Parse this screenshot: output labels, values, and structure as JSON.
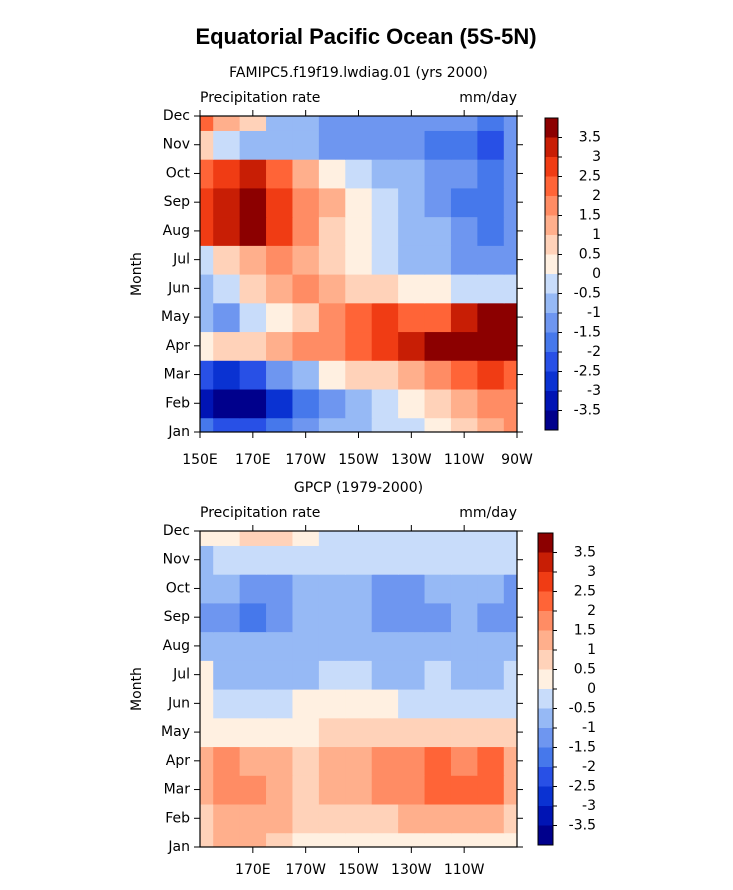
{
  "title": "Equatorial Pacific Ocean (5S-5N)",
  "chart_data": [
    {
      "type": "heatmap",
      "subtitle": "FAMIPC5.f19f19.lwdiag.01 (yrs 2000)",
      "left_label": "Precipitation rate",
      "units": "mm/day",
      "ylabel": "Month",
      "x": [
        150,
        160,
        170,
        180,
        190,
        200,
        210,
        220,
        230,
        240,
        250,
        260,
        270
      ],
      "categories": [
        "Jan",
        "Feb",
        "Mar",
        "Apr",
        "May",
        "Jun",
        "Jul",
        "Aug",
        "Sep",
        "Oct",
        "Nov",
        "Dec"
      ],
      "xlim": [
        150,
        270
      ],
      "xticks": [
        {
          "value": 150,
          "label": "150E"
        },
        {
          "value": 170,
          "label": "170E"
        },
        {
          "value": 190,
          "label": "170W"
        },
        {
          "value": 210,
          "label": "150W"
        },
        {
          "value": 230,
          "label": "130W"
        },
        {
          "value": 250,
          "label": "110W"
        },
        {
          "value": 270,
          "label": "90W"
        }
      ],
      "values": [
        [
          -2,
          -2.5,
          -2.5,
          -2,
          -1.5,
          -1,
          -0.7,
          -0.5,
          -0.2,
          0.3,
          0.8,
          1.2,
          1.5
        ],
        [
          -3.5,
          -4,
          -3.8,
          -3,
          -2,
          -1.2,
          -0.8,
          -0.3,
          0.2,
          0.7,
          1.2,
          1.5,
          1.8
        ],
        [
          -2.5,
          -2.8,
          -2.5,
          -1.5,
          -0.8,
          0,
          0.5,
          0.8,
          1.2,
          1.8,
          2.2,
          2.5,
          2.2
        ],
        [
          0.3,
          0.5,
          0.8,
          1.2,
          1.5,
          1.8,
          2.2,
          2.8,
          3.2,
          3.8,
          4,
          4,
          3.8
        ],
        [
          -1,
          -1.2,
          -0.5,
          0.2,
          0.8,
          1.5,
          2.2,
          2.5,
          2.2,
          2,
          3,
          3.8,
          3.5
        ],
        [
          -1,
          -0.5,
          0.8,
          1.2,
          1.8,
          1.2,
          0.8,
          0.5,
          0.3,
          0,
          -0.3,
          -0.5,
          -0.3
        ],
        [
          -0.3,
          0.5,
          1.2,
          1.5,
          1,
          0.5,
          0.2,
          -0.3,
          -0.6,
          -0.8,
          -1.2,
          -1.5,
          -1.2
        ],
        [
          2.5,
          3,
          3.6,
          2.5,
          1.5,
          0.7,
          0.2,
          -0.3,
          -0.7,
          -1,
          -1.5,
          -2,
          -1.5
        ],
        [
          2.8,
          3.2,
          3.8,
          2.8,
          1.8,
          1,
          0.3,
          -0.3,
          -0.8,
          -1.2,
          -1.8,
          -2,
          -1.5
        ],
        [
          2.2,
          2.5,
          3.2,
          2,
          1,
          0.2,
          -0.5,
          -0.8,
          -1,
          -1.3,
          -1.5,
          -2,
          -1.5
        ],
        [
          0.5,
          -0.5,
          -1,
          -1,
          -1,
          -1.2,
          -1.3,
          -1.5,
          -1.5,
          -1.8,
          -2,
          -2.2,
          -1.5
        ],
        [
          2,
          1.2,
          0.5,
          -0.8,
          -1,
          -1.2,
          -1.3,
          -1.5,
          -1.5,
          -1.2,
          -1.5,
          -1.8,
          -1.2
        ]
      ],
      "levels": [
        -3.5,
        -3,
        -2.5,
        -2,
        -1.5,
        -1,
        -0.5,
        0,
        0.5,
        1,
        1.5,
        2,
        2.5,
        3,
        3.5
      ],
      "colors": [
        "#00008c",
        "#0014b4",
        "#0a32d2",
        "#2850e6",
        "#4678eb",
        "#6e96f0",
        "#96b9f5",
        "#c8dcfa",
        "#fff0e1",
        "#ffd2b9",
        "#ffaf8c",
        "#ff8c64",
        "#ff6437",
        "#f03c14",
        "#c81e05",
        "#8c0000"
      ]
    },
    {
      "type": "heatmap",
      "subtitle": "GPCP (1979-2000)",
      "left_label": "Precipitation rate",
      "units": "mm/day",
      "ylabel": "Month",
      "x": [
        150,
        160,
        170,
        180,
        190,
        200,
        210,
        220,
        230,
        240,
        250,
        260,
        270
      ],
      "categories": [
        "Jan",
        "Feb",
        "Mar",
        "Apr",
        "May",
        "Jun",
        "Jul",
        "Aug",
        "Sep",
        "Oct",
        "Nov",
        "Dec"
      ],
      "xlim": [
        150,
        270
      ],
      "xticks": [
        {
          "value": 170,
          "label": "170E"
        },
        {
          "value": 190,
          "label": "170W"
        },
        {
          "value": 210,
          "label": "150W"
        },
        {
          "value": 230,
          "label": "130W"
        },
        {
          "value": 250,
          "label": "110W"
        }
      ],
      "values": [
        [
          0.5,
          1,
          1.2,
          0.5,
          0.3,
          0.3,
          0.4,
          0.4,
          0.4,
          0.3,
          0.3,
          0.3,
          0.2
        ],
        [
          0.8,
          1.2,
          1.3,
          1,
          0.5,
          0.7,
          0.8,
          0.9,
          1,
          1.1,
          1.2,
          1,
          0.8
        ],
        [
          1.2,
          1.5,
          1.6,
          1.3,
          0.7,
          1,
          1.3,
          1.6,
          1.8,
          2.1,
          2,
          2.1,
          1.3
        ],
        [
          1.2,
          1.5,
          1.3,
          1,
          0.8,
          1,
          1.4,
          1.8,
          1.9,
          2.2,
          1.9,
          2,
          1.2
        ],
        [
          0.3,
          0.3,
          0.2,
          0.2,
          0.4,
          0.8,
          0.9,
          0.8,
          0.7,
          0.8,
          0.7,
          0.6,
          0.5
        ],
        [
          0.3,
          -0.3,
          -0.5,
          -0.3,
          0,
          0.3,
          0.2,
          0,
          -0.2,
          -0.2,
          -0.3,
          -0.3,
          -0.2
        ],
        [
          0.3,
          -0.6,
          -0.7,
          -0.7,
          -0.6,
          -0.5,
          -0.5,
          -0.6,
          -0.6,
          -0.5,
          -0.6,
          -0.6,
          -0.5
        ],
        [
          -0.6,
          -0.8,
          -0.8,
          -0.8,
          -0.6,
          -0.7,
          -0.7,
          -0.8,
          -0.8,
          -0.7,
          -0.7,
          -0.8,
          -1
        ],
        [
          -1.5,
          -1.2,
          -1.6,
          -1.3,
          -0.8,
          -0.7,
          -1,
          -1.1,
          -1.1,
          -1.1,
          -0.8,
          -1.1,
          -1.2
        ],
        [
          -0.8,
          -1,
          -1.2,
          -1.1,
          -0.7,
          -0.7,
          -0.9,
          -1.1,
          -1.1,
          -1,
          -0.7,
          -1,
          -1.1
        ],
        [
          -0.6,
          -0.4,
          -0.5,
          -0.5,
          -0.4,
          -0.3,
          -0.3,
          -0.3,
          -0.3,
          -0.3,
          -0.4,
          -0.3,
          -0.3
        ],
        [
          0,
          0.3,
          0.8,
          0.6,
          0.2,
          -0.2,
          -0.2,
          -0.2,
          -0.2,
          -0.2,
          -0.3,
          -0.2,
          -0.2
        ]
      ],
      "levels": [
        -3.5,
        -3,
        -2.5,
        -2,
        -1.5,
        -1,
        -0.5,
        0,
        0.5,
        1,
        1.5,
        2,
        2.5,
        3,
        3.5
      ],
      "colors": [
        "#00008c",
        "#0014b4",
        "#0a32d2",
        "#2850e6",
        "#4678eb",
        "#6e96f0",
        "#96b9f5",
        "#c8dcfa",
        "#fff0e1",
        "#ffd2b9",
        "#ffaf8c",
        "#ff8c64",
        "#ff6437",
        "#f03c14",
        "#c81e05",
        "#8c0000"
      ]
    }
  ]
}
